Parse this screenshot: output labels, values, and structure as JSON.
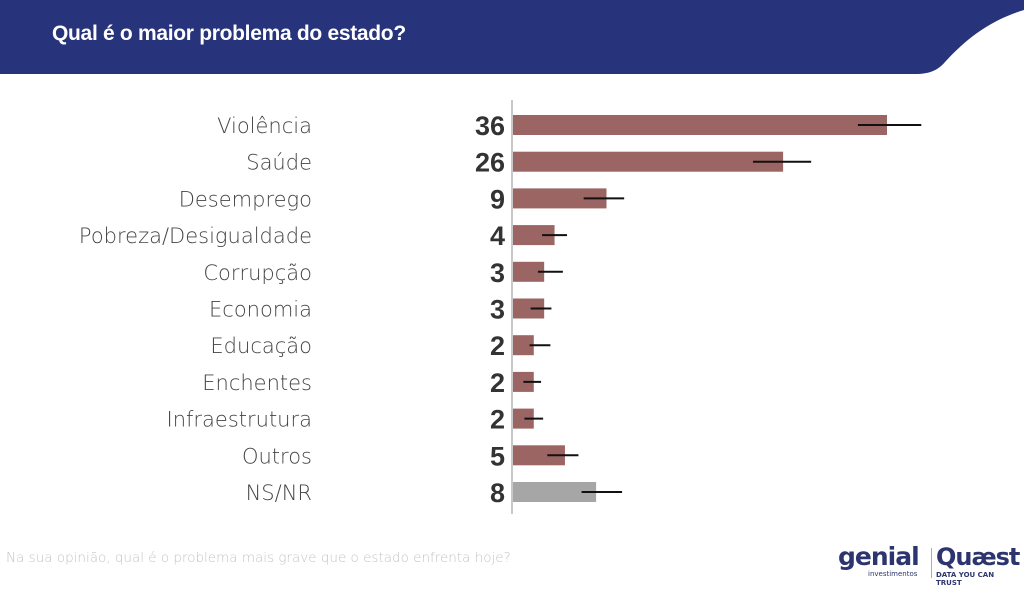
{
  "header": {
    "title": "Qual é o maior problema do estado?",
    "color": "#27337a"
  },
  "footnote": "Na sua opinião, qual é o problema mais grave que o estado enfrenta hoje?",
  "logos": {
    "genial": "genial",
    "genial_sub": "investimentos",
    "quaest": "Quæst",
    "quaest_sub": "DATA YOU CAN TRUST"
  },
  "colors": {
    "bar": "#9a6562",
    "bar_nsnr": "#a6a6a6",
    "axis": "#c8c8c8",
    "error": "#111111"
  },
  "chart_data": {
    "type": "bar",
    "orientation": "horizontal",
    "title": "Qual é o maior problema do estado?",
    "xlabel": "",
    "ylabel": "",
    "xlim": [
      0,
      40
    ],
    "grid": false,
    "categories": [
      "Violência",
      "Saúde",
      "Desemprego",
      "Pobreza/Desigualdade",
      "Corrupção",
      "Economia",
      "Educação",
      "Enchentes",
      "Infraestrutura",
      "Outros",
      "NS/NR"
    ],
    "values": [
      36,
      26,
      9,
      4,
      3,
      3,
      2,
      2,
      2,
      5,
      8
    ],
    "error_low": [
      33.2,
      23.1,
      6.8,
      2.8,
      2.4,
      1.7,
      1.6,
      1.0,
      1.1,
      3.3,
      6.6
    ],
    "error_high": [
      39.3,
      28.7,
      10.7,
      5.2,
      4.8,
      3.7,
      3.6,
      2.7,
      2.9,
      6.3,
      10.5
    ],
    "highlight_gray": [
      "NS/NR"
    ]
  }
}
